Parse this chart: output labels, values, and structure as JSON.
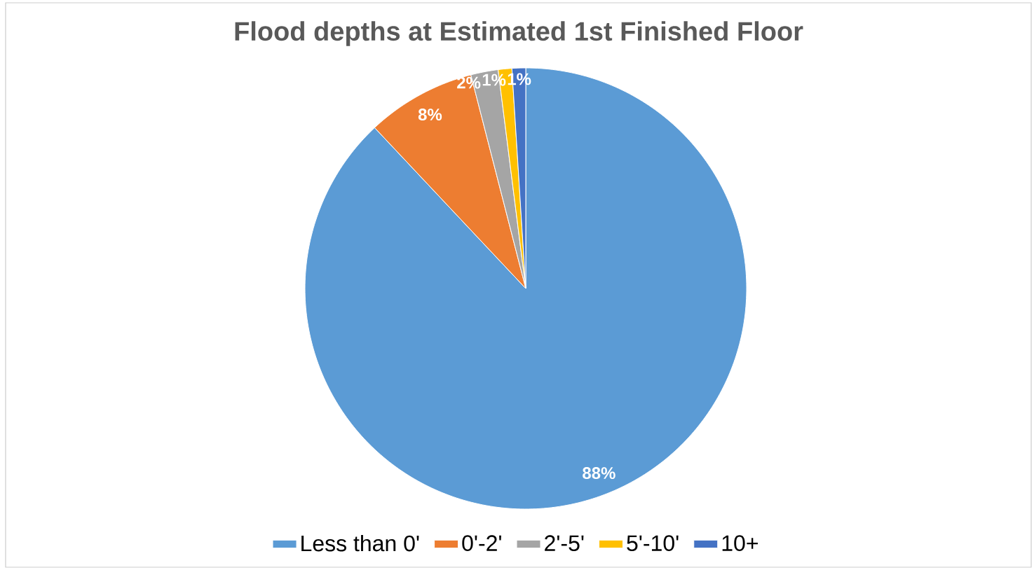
{
  "chart_data": {
    "type": "pie",
    "title": "Flood depths at Estimated 1st Finished Floor",
    "categories": [
      "Less than 0'",
      "0'-2'",
      "2'-5'",
      "5'-10'",
      "10+"
    ],
    "values": [
      88,
      8,
      2,
      1,
      1
    ],
    "colors": [
      "#5b9bd5",
      "#ed7d31",
      "#a5a5a5",
      "#ffc000",
      "#4472c4"
    ],
    "value_labels": [
      "88%",
      "8%",
      "2%",
      "1%",
      "1%"
    ],
    "legend": "bottom"
  }
}
